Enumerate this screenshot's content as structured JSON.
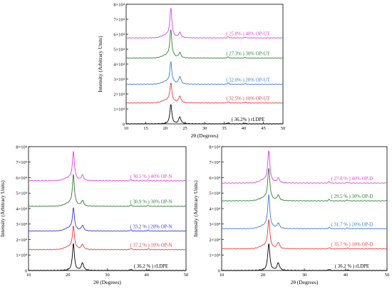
{
  "chart_data": [
    {
      "type": "line",
      "xlabel": "2θ (Degrees)",
      "ylabel": "Intensity (Arbitrary Units)",
      "xlim": [
        10,
        50
      ],
      "ylim": [
        0,
        80000
      ],
      "x_ticks": [
        "10",
        "15",
        "20",
        "25",
        "30",
        "35",
        "40",
        "45",
        "50"
      ],
      "y_ticks": [
        "0",
        "1×10⁴",
        "2×10⁴",
        "3×10⁴",
        "4×10⁴",
        "5×10⁴",
        "6×10⁴",
        "7×10⁴",
        "8×10⁴"
      ],
      "series": [
        {
          "name": "rLDPE",
          "label": "( 36.2% ) rLDPE",
          "color": "#000000",
          "baseline": 0,
          "peak1": 13000,
          "peak2": 4500
        },
        {
          "name": "10% OP-UT",
          "label": "( 32.5% ) 10% OP-UT",
          "color": "#e8383b",
          "baseline": 14000,
          "peak1": 26000,
          "peak2": 18500
        },
        {
          "name": "20% OP-UT",
          "label": "( 32.0% ) 20% OP-UT",
          "color": "#3b78d8",
          "baseline": 26500,
          "peak1": 40000,
          "peak2": 31500
        },
        {
          "name": "30% OP-UT",
          "label": "( 27.3% ) 30% OP-UT",
          "color": "#2e7d32",
          "baseline": 44000,
          "peak1": 61500,
          "peak2": 47500
        },
        {
          "name": "40% OP-UT",
          "label": "( 25.8% ) 40% OP-UT",
          "color": "#e040e0",
          "baseline": 57500,
          "peak1": 76000,
          "peak2": 61000
        }
      ]
    },
    {
      "type": "line",
      "xlabel": "2θ (Degrees)",
      "ylabel": "Intensity (Arbitrary Units)",
      "xlim": [
        10,
        50
      ],
      "ylim": [
        0,
        80000
      ],
      "x_ticks": [
        "10",
        "20",
        "30",
        "40",
        "50"
      ],
      "y_ticks": [
        "0",
        "1×10⁴",
        "2×10⁴",
        "3×10⁴",
        "4×10⁴",
        "5×10⁴",
        "6×10⁴",
        "7×10⁴",
        "8×10⁴"
      ],
      "series": [
        {
          "name": "rLDPE",
          "label": "( 36.2 % ) rLDPE",
          "color": "#000000",
          "baseline": 0,
          "peak1": 17500,
          "peak2": 4800
        },
        {
          "name": "10% OP-N",
          "label": "( 37.2 % ) 10% OP-N",
          "color": "#e8383b",
          "baseline": 13500,
          "peak1": 27500,
          "peak2": 16800
        },
        {
          "name": "20% OP-N",
          "label": "( 33.2 % ) 20% OP-N",
          "color": "#3535d8",
          "baseline": 25500,
          "peak1": 39000,
          "peak2": 29000
        },
        {
          "name": "30% OP-N",
          "label": "( 30.9 % ) 30% OP-N",
          "color": "#2e7d32",
          "baseline": 41500,
          "peak1": 60500,
          "peak2": 45000
        },
        {
          "name": "40% OP-N",
          "label": "( 30.5 % ) 40% OP-N",
          "color": "#e040e0",
          "baseline": 58000,
          "peak1": 75500,
          "peak2": 61500
        }
      ]
    },
    {
      "type": "line",
      "xlabel": "2θ (Degrees)",
      "ylabel": "Intensity (Arbitrary Units)",
      "xlim": [
        10,
        50
      ],
      "ylim": [
        0,
        80000
      ],
      "x_ticks": [
        "10",
        "20",
        "30",
        "40",
        "50"
      ],
      "y_ticks": [
        "0",
        "1×10⁴",
        "2×10⁴",
        "3×10⁴",
        "4×10⁴",
        "5×10⁴",
        "6×10⁴",
        "7×10⁴",
        "8×10⁴"
      ],
      "series": [
        {
          "name": "rLDPE",
          "label": "( 36.2 % ) rLDPE",
          "color": "#000000",
          "baseline": 0,
          "peak1": 17500,
          "peak2": 4800
        },
        {
          "name": "10% OP-D",
          "label": "( 35.7 % ) 10% OP-D",
          "color": "#e8383b",
          "baseline": 14000,
          "peak1": 31500,
          "peak2": 18000
        },
        {
          "name": "20% OP-D",
          "label": "( 31.7 % ) 20% OP-D",
          "color": "#3b78d8",
          "baseline": 27000,
          "peak1": 47500,
          "peak2": 30500
        },
        {
          "name": "30% OP-D",
          "label": "( 29.5 % ) 30% OP-D",
          "color": "#2e7d32",
          "baseline": 45000,
          "peak1": 64500,
          "peak2": 48500
        },
        {
          "name": "40% OP-D",
          "label": "( 27.8 % ) 40% OP-D",
          "color": "#e040e0",
          "baseline": 56500,
          "peak1": 76000,
          "peak2": 59500
        }
      ]
    }
  ]
}
